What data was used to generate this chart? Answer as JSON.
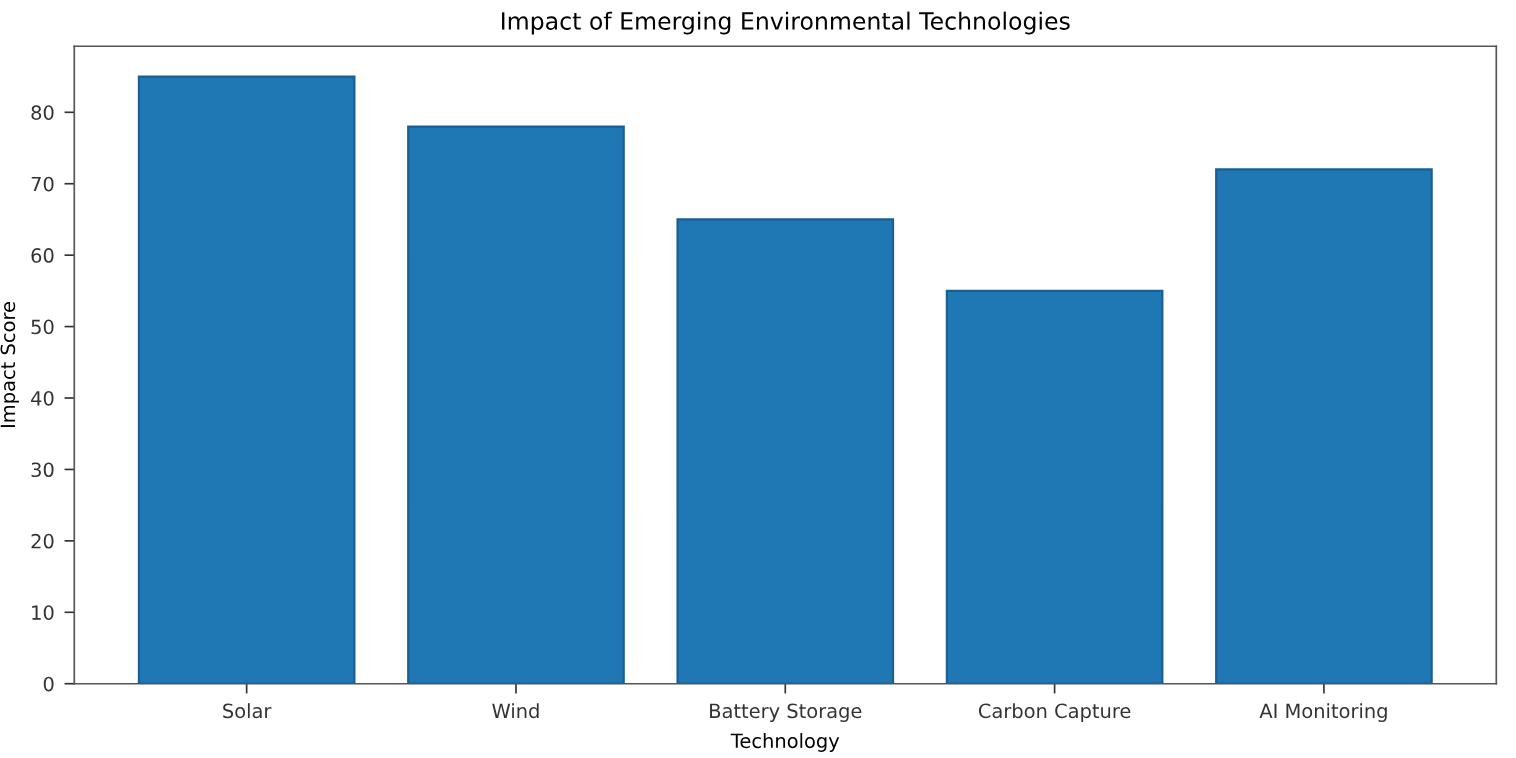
{
  "chart_data": {
    "type": "bar",
    "title": "Impact of Emerging Environmental Technologies",
    "xlabel": "Technology",
    "ylabel": "Impact Score",
    "categories": [
      "Solar",
      "Wind",
      "Battery Storage",
      "Carbon Capture",
      "AI Monitoring"
    ],
    "values": [
      85,
      78,
      65,
      55,
      72
    ],
    "color": "#1f77b4",
    "ylim": [
      0,
      89.25
    ],
    "yticks": [
      0,
      10,
      20,
      30,
      40,
      50,
      60,
      70,
      80
    ],
    "grid": false,
    "legend": false
  }
}
